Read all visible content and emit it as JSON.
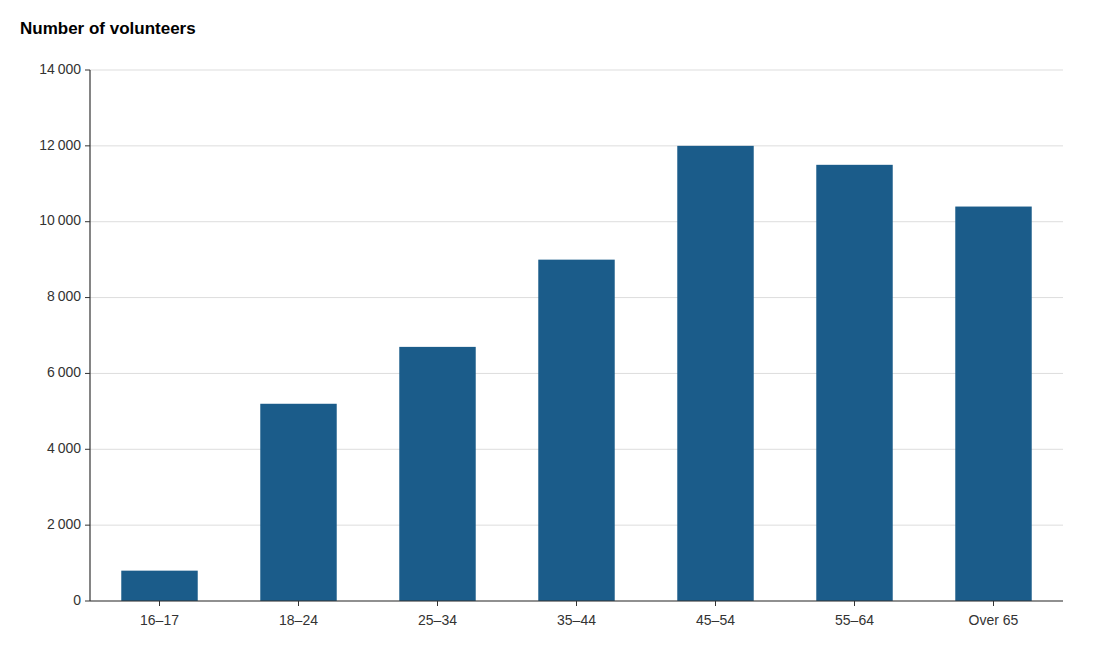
{
  "chart_data": {
    "type": "bar",
    "ylabel": "Number of volunteers",
    "categories": [
      "16–17",
      "18–24",
      "25–34",
      "35–44",
      "45–54",
      "55–64",
      "Over 65"
    ],
    "values": [
      800,
      5200,
      6700,
      9000,
      12000,
      11500,
      10400
    ],
    "color": "#1b5c8a",
    "ylim": [
      0,
      14000
    ],
    "yticks": [
      0,
      {
        "value": 2000,
        "label": "2 000"
      },
      {
        "value": 4000,
        "label": "4 000"
      },
      {
        "value": 6000,
        "label": "6 000"
      },
      {
        "value": 8000,
        "label": "8 000"
      },
      {
        "value": 10000,
        "label": "10 000"
      },
      {
        "value": 12000,
        "label": "12 000"
      },
      {
        "value": 14000,
        "label": "14 000"
      }
    ],
    "grid": true
  }
}
